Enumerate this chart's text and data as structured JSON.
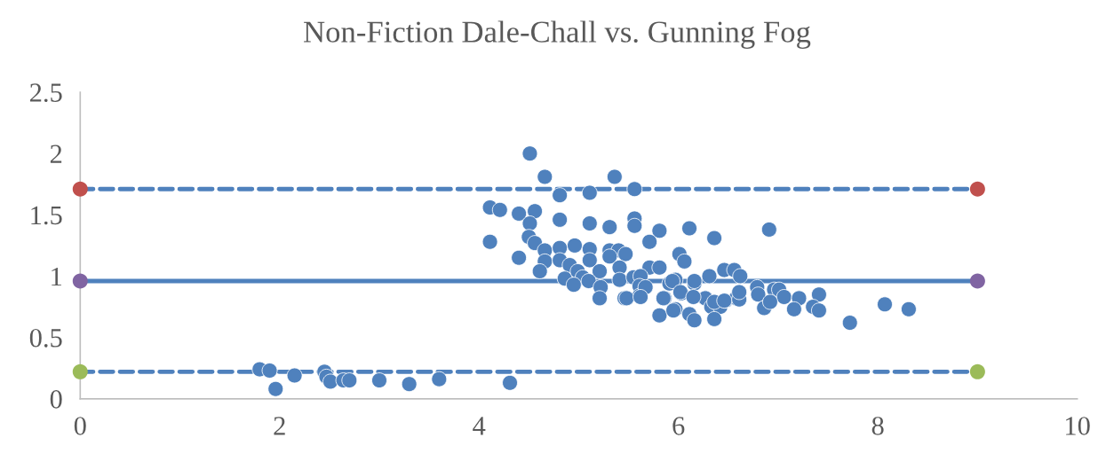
{
  "chart_data": {
    "type": "scatter",
    "title": "Non-Fiction Dale-Chall vs. Gunning Fog",
    "xlim": [
      0,
      10
    ],
    "xticks": [
      0,
      2,
      4,
      6,
      8,
      10
    ],
    "ylim": [
      0,
      2.5
    ],
    "yticks": [
      0,
      0.5,
      1,
      1.5,
      2,
      2.5
    ],
    "grid": false,
    "legend": false,
    "marker": "circle",
    "series": [
      {
        "color": "#4f81bd",
        "x": [
          1.8,
          1.9,
          1.96,
          2.15,
          2.45,
          2.47,
          2.51,
          2.64,
          2.7,
          3.0,
          3.3,
          3.6,
          4.31,
          4.51,
          4.66,
          5.36,
          4.81,
          5.11,
          5.56,
          4.11,
          4.21,
          4.4,
          4.56,
          4.51,
          4.81,
          5.11,
          5.31,
          5.56,
          5.56,
          5.81,
          6.11,
          6.36,
          6.91,
          4.11,
          4.5,
          4.56,
          4.66,
          4.4,
          4.66,
          4.61,
          4.81,
          4.96,
          5.11,
          5.11,
          4.81,
          4.91,
          5.31,
          5.4,
          5.47,
          5.31,
          5.41,
          5.71,
          6.01,
          6.06,
          5.71,
          5.81,
          6.46,
          6.56,
          4.86,
          4.99,
          5.04,
          5.21,
          4.95,
          5.1,
          5.22,
          5.21,
          5.41,
          5.46,
          5.55,
          5.62,
          5.61,
          5.61,
          5.91,
          5.97,
          5.86,
          6.03,
          5.97,
          5.81,
          6.11,
          6.16,
          6.16,
          6.31,
          6.27,
          6.33,
          6.42,
          6.47,
          6.58,
          6.36,
          6.62,
          5.67,
          5.94,
          6.16,
          6.79,
          6.96,
          7.01,
          7.06,
          7.21,
          7.41,
          5.48,
          5.62,
          5.85,
          6.02,
          6.15,
          6.36,
          6.46,
          6.61,
          6.61,
          6.8,
          6.86,
          6.92,
          7.16,
          7.35,
          7.41,
          5.95,
          7.72,
          8.07,
          8.31
        ],
        "values": [
          0.24,
          0.23,
          0.08,
          0.19,
          0.22,
          0.18,
          0.14,
          0.15,
          0.15,
          0.15,
          0.12,
          0.16,
          0.13,
          2.0,
          1.81,
          1.81,
          1.66,
          1.68,
          1.71,
          1.56,
          1.54,
          1.51,
          1.53,
          1.43,
          1.46,
          1.43,
          1.4,
          1.47,
          1.41,
          1.37,
          1.39,
          1.31,
          1.38,
          1.28,
          1.32,
          1.27,
          1.21,
          1.15,
          1.12,
          1.04,
          1.23,
          1.25,
          1.22,
          1.13,
          1.13,
          1.09,
          1.21,
          1.21,
          1.18,
          1.16,
          1.07,
          1.28,
          1.18,
          1.12,
          1.07,
          1.07,
          1.05,
          1.05,
          0.98,
          1.04,
          0.99,
          1.04,
          0.93,
          0.96,
          0.91,
          0.82,
          0.97,
          0.82,
          0.99,
          1.0,
          0.92,
          0.84,
          0.94,
          0.97,
          0.82,
          0.86,
          0.73,
          0.68,
          0.69,
          0.64,
          0.94,
          1.0,
          0.82,
          0.75,
          0.75,
          0.8,
          0.82,
          0.65,
          1.0,
          0.91,
          0.96,
          0.96,
          0.91,
          0.89,
          0.89,
          0.83,
          0.82,
          0.85,
          0.82,
          0.83,
          0.82,
          0.87,
          0.83,
          0.79,
          0.8,
          0.81,
          0.87,
          0.85,
          0.74,
          0.79,
          0.73,
          0.75,
          0.72,
          0.72,
          0.62,
          0.77,
          0.73
        ]
      },
      {
        "type": "line",
        "color": "#4f81bd",
        "colors": [
          "#c0504d",
          "#c0504d"
        ],
        "line_style": "dashed",
        "marker": "circle",
        "x": [
          0,
          9
        ],
        "values": [
          1.71,
          1.71
        ]
      },
      {
        "type": "line",
        "color": "#4f81bd",
        "colors": [
          "#8064a2",
          "#8064a2"
        ],
        "line_style": "solid",
        "marker": "circle",
        "x": [
          0,
          9
        ],
        "values": [
          0.96,
          0.96
        ]
      },
      {
        "type": "line",
        "color": "#4f81bd",
        "colors": [
          "#9bbb59",
          "#9bbb59"
        ],
        "line_style": "dashed",
        "marker": "circle",
        "x": [
          0,
          9
        ],
        "values": [
          0.22,
          0.22
        ]
      }
    ]
  }
}
